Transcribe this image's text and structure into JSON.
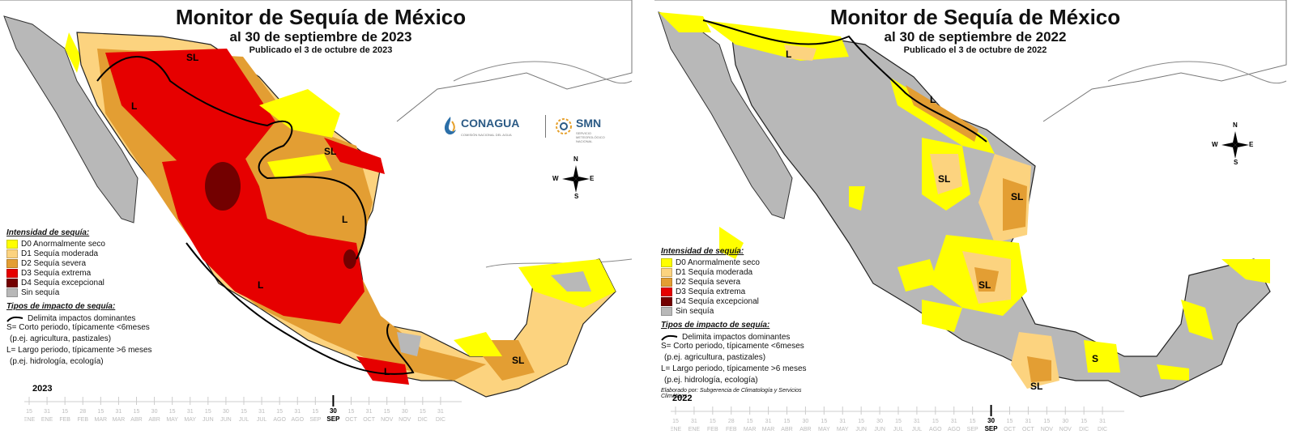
{
  "panels": [
    {
      "title": "Monitor de Sequía de México",
      "date": "al 30 de septiembre de 2023",
      "published": "Publicado el 3 de octubre de 2023",
      "year": "2023",
      "labels": {
        "sl_north": "SL",
        "l_northwest": "L",
        "sl_northeast": "SL",
        "l_central_east": "L",
        "l_center": "L",
        "l_south": "L",
        "sl_yucatan": "SL"
      }
    },
    {
      "title": "Monitor de Sequía de México",
      "date": "al 30 de septiembre de 2022",
      "published": "Publicado el 3 de octubre de 2022",
      "year": "2022",
      "credit": "Elaborado por: Subgerencia de Climatología y Servicios Climáticos",
      "labels": {
        "l_border": "L",
        "l_northeast": "L",
        "sl_north": "SL",
        "sl_east": "SL",
        "sl_center": "SL",
        "s_southeast": "S",
        "sl_south": "SL"
      }
    }
  ],
  "legend": {
    "heading": "Intensidad de sequía:",
    "items": [
      {
        "label": "D0 Anormalmente seco",
        "color": "#ffff00"
      },
      {
        "label": "D1 Sequía moderada",
        "color": "#fcd37f"
      },
      {
        "label": "D2 Sequía severa",
        "color": "#e39e33"
      },
      {
        "label": "D3 Sequía extrema",
        "color": "#e60000"
      },
      {
        "label": "D4 Sequía excepcional",
        "color": "#730000"
      },
      {
        "label": "Sin sequía",
        "color": "#b8b8b8"
      }
    ],
    "impact_heading": "Tipos de impacto de sequía:",
    "impact_line": "Delimita impactos dominantes",
    "short_1": "S= Corto periodo, típicamente <6meses",
    "short_2": "(p.ej. agricultura, pastizales)",
    "long_1": "L= Largo periodo, típicamente >6 meses",
    "long_2": "(p.ej. hidrología, ecología)"
  },
  "logos": {
    "conagua": "CONAGUA",
    "conagua_sub": "COMISIÓN NACIONAL DEL AGUA",
    "smn": "SMN",
    "smn_sub": "SERVICIO METEOROLÓGICO NACIONAL"
  },
  "compass": {
    "n": "N",
    "e": "E",
    "s": "S",
    "w": "W"
  },
  "timeline": {
    "days": [
      "15",
      "31",
      "15",
      "28",
      "15",
      "31",
      "15",
      "30",
      "15",
      "31",
      "15",
      "30",
      "15",
      "31",
      "15",
      "31",
      "15",
      "30",
      "15",
      "31",
      "15",
      "30",
      "15",
      "31"
    ],
    "months": [
      "ENE",
      "ENE",
      "FEB",
      "FEB",
      "MAR",
      "MAR",
      "ABR",
      "ABR",
      "MAY",
      "MAY",
      "JUN",
      "JUN",
      "JUL",
      "JUL",
      "AGO",
      "AGO",
      "SEP",
      "SEP",
      "OCT",
      "OCT",
      "NOV",
      "NOV",
      "DIC",
      "DIC"
    ],
    "marker_day": "30",
    "marker_month": "SEP"
  }
}
